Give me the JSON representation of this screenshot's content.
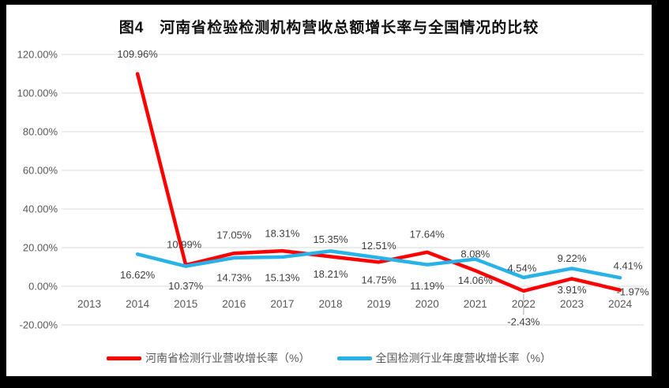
{
  "colors": {
    "frame_background": "#000000",
    "chart_background": "#ffffff",
    "gridline": "#d9d9d9",
    "axis_text": "#595959",
    "data_label_text": "#404040",
    "series_henan": "#ff0000",
    "series_national": "#28b2e8",
    "leader_line": "#a6a6a6"
  },
  "chart_data": {
    "type": "line",
    "title": "图4　河南省检验检测机构营收总额增长率与全国情况的比较",
    "categories": [
      "2013",
      "2014",
      "2015",
      "2016",
      "2017",
      "2018",
      "2019",
      "2020",
      "2021",
      "2022",
      "2023",
      "2024"
    ],
    "y_axis": {
      "min": -20,
      "max": 120,
      "step": 20,
      "tick_labels": [
        "120.00%",
        "100.00%",
        "80.00%",
        "60.00%",
        "40.00%",
        "20.00%",
        "0.00%",
        "-20.00%"
      ]
    },
    "grid": "horizontal",
    "legend_position": "bottom",
    "series": [
      {
        "name": "河南省检测行业营收增长率（%）",
        "color": "#ff0000",
        "values": [
          null,
          109.96,
          10.99,
          17.05,
          18.31,
          15.35,
          12.51,
          17.64,
          8.08,
          -2.43,
          3.91,
          -1.97
        ],
        "data_labels": [
          "",
          "109.96%",
          "10.99%",
          "17.05%",
          "18.31%",
          "15.35%",
          "12.51%",
          "17.64%",
          "8.08%",
          "-2.43%",
          "3.91%",
          "-1.97%"
        ],
        "label_offsets": [
          null,
          [
            0,
            -25
          ],
          [
            -2,
            -26
          ],
          [
            0,
            -23
          ],
          [
            0,
            -22
          ],
          [
            0,
            -22
          ],
          [
            0,
            -21
          ],
          [
            0,
            -23
          ],
          [
            0,
            -21
          ],
          [
            0,
            39
          ],
          [
            0,
            14
          ],
          [
            16,
            2
          ]
        ]
      },
      {
        "name": "全国检测行业年度营收增长率（%）",
        "color": "#28b2e8",
        "values": [
          null,
          16.62,
          10.37,
          14.73,
          15.13,
          18.21,
          14.75,
          11.19,
          14.06,
          4.54,
          9.22,
          4.41
        ],
        "data_labels": [
          "",
          "16.62%",
          "10.37%",
          "14.73%",
          "15.13%",
          "18.21%",
          "14.75%",
          "11.19%",
          "14.06%",
          "4.54%",
          "9.22%",
          "4.41%"
        ],
        "label_offsets": [
          null,
          [
            0,
            26
          ],
          [
            0,
            25
          ],
          [
            0,
            25
          ],
          [
            0,
            26
          ],
          [
            0,
            29
          ],
          [
            0,
            28
          ],
          [
            0,
            27
          ],
          [
            0,
            27
          ],
          [
            -2,
            -12
          ],
          [
            0,
            -13
          ],
          [
            10,
            -15
          ]
        ]
      }
    ],
    "leader_line": {
      "category": "2022",
      "series_index": 0
    }
  }
}
